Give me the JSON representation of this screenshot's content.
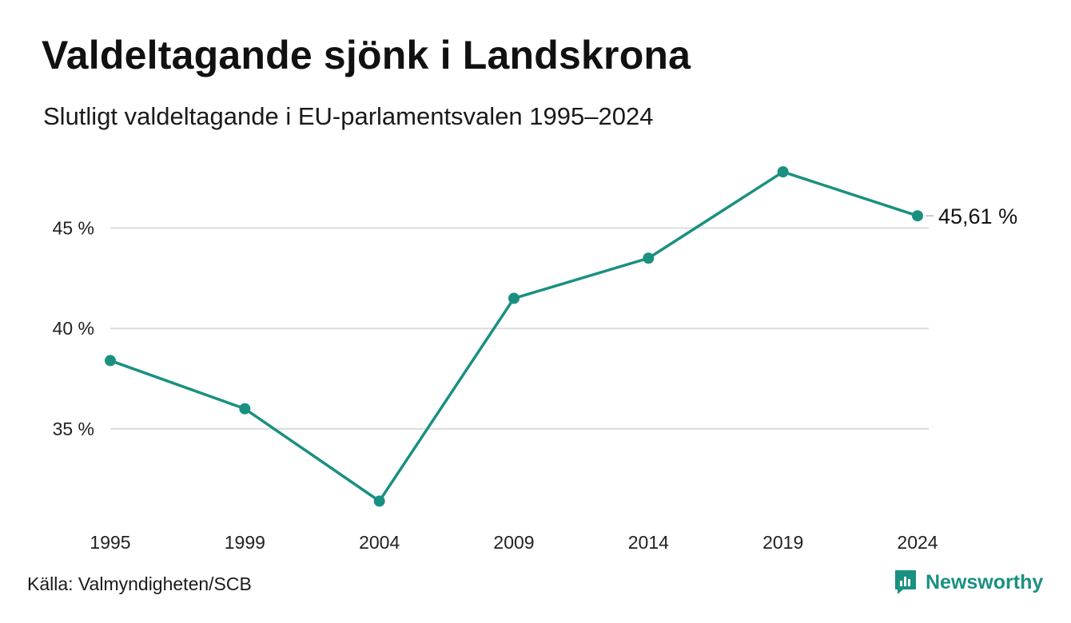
{
  "header": {
    "title": "Valdeltagande sjönk i Landskrona",
    "subtitle": "Slutligt valdeltagande i EU-parlamentsvalen 1995–2024"
  },
  "footer": {
    "source": "Källa: Valmyndigheten/SCB",
    "brand": "Newsworthy",
    "brand_icon": "newsworthy-logo-icon"
  },
  "colors": {
    "line": "#1a9080",
    "grid": "#dcdcdc",
    "text": "#111111",
    "brand": "#1a9080"
  },
  "chart_data": {
    "type": "line",
    "title": "Valdeltagande sjönk i Landskrona",
    "subtitle": "Slutligt valdeltagande i EU-parlamentsvalen 1995–2024",
    "x": [
      "1995",
      "1999",
      "2004",
      "2009",
      "2014",
      "2019",
      "2024"
    ],
    "series": [
      {
        "values": [
          38.4,
          36.0,
          31.4,
          41.5,
          43.5,
          47.8,
          45.61
        ]
      }
    ],
    "yticks": [
      35,
      40,
      45
    ],
    "ytick_labels": [
      "35 %",
      "40 %",
      "45 %"
    ],
    "ylim": [
      30.5,
      49
    ],
    "grid": true,
    "last_value_label": "45,61 %",
    "xlabel": "",
    "ylabel": ""
  }
}
